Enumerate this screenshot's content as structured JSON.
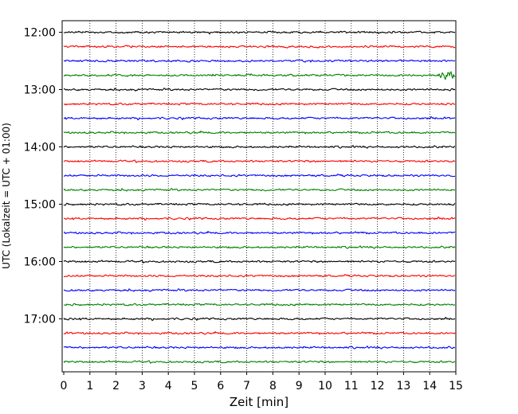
{
  "chart_data": {
    "type": "line",
    "title": "",
    "xlabel": "Zeit  [min]",
    "ylabel": "UTC (Lokalzeit = UTC + 01:00)",
    "xlim": [
      0,
      15
    ],
    "x_ticks": [
      "0",
      "1",
      "2",
      "3",
      "4",
      "5",
      "6",
      "7",
      "8",
      "9",
      "10",
      "11",
      "12",
      "13",
      "14",
      "15"
    ],
    "y_tick_labels": [
      "12:00",
      "13:00",
      "14:00",
      "15:00",
      "16:00",
      "17:00"
    ],
    "rows_per_hour": 4,
    "row_start_times": [
      "12:00",
      "12:15",
      "12:30",
      "12:45",
      "13:00",
      "13:15",
      "13:30",
      "13:45",
      "14:00",
      "14:15",
      "14:30",
      "14:45",
      "15:00",
      "15:15",
      "15:30",
      "15:45",
      "16:00",
      "16:15",
      "16:30",
      "16:45",
      "17:00",
      "17:15",
      "17:30",
      "17:45"
    ],
    "trace_colors": [
      "#000000",
      "#ff0000",
      "#0000ff",
      "#008000"
    ],
    "grid": "vertical dotted lines at each minute",
    "events": [
      {
        "row": "12:45",
        "x_min": 14.3,
        "x_max": 15.0,
        "note": "larger amplitude burst"
      }
    ]
  }
}
